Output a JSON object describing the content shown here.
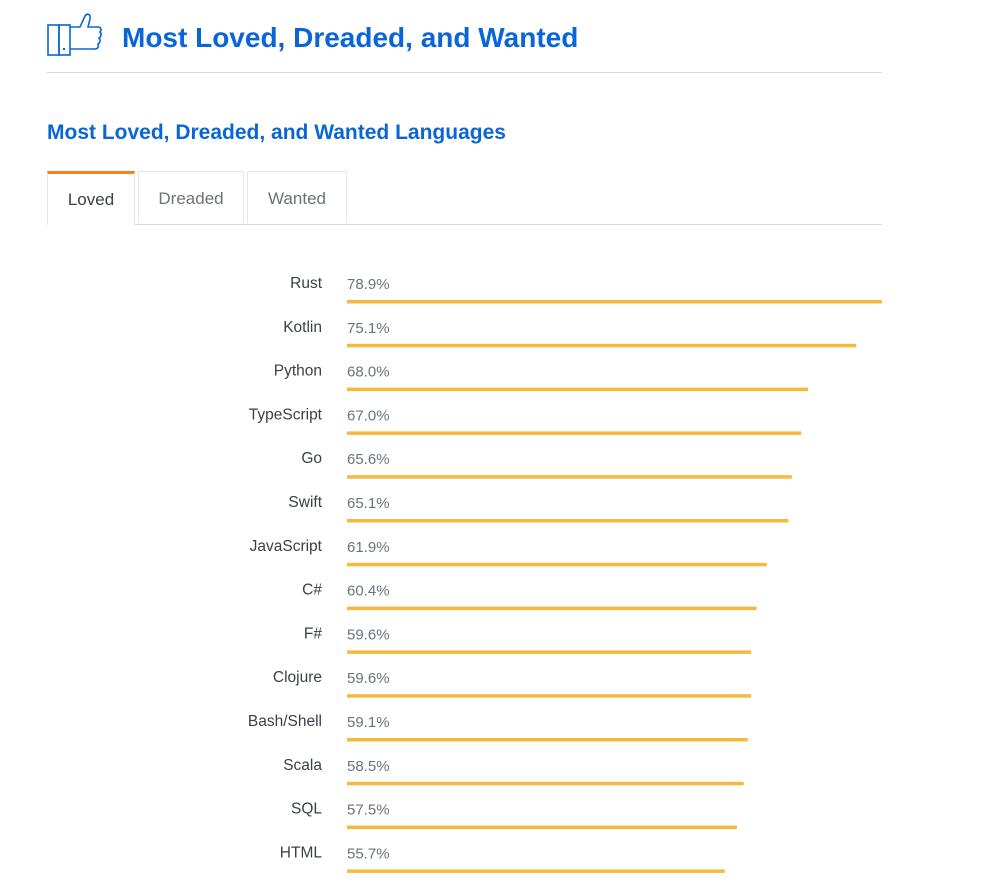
{
  "header": {
    "title": "Most Loved, Dreaded, and Wanted",
    "icon": "thumbs-up-icon"
  },
  "section": {
    "title": "Most Loved, Dreaded, and Wanted Languages"
  },
  "tabs": [
    {
      "label": "Loved",
      "active": true
    },
    {
      "label": "Dreaded",
      "active": false
    },
    {
      "label": "Wanted",
      "active": false
    }
  ],
  "colors": {
    "accent": "#0a66d6",
    "bar": "#f6b93b",
    "tab_active": "#f48024"
  },
  "chart_data": {
    "type": "bar",
    "orientation": "horizontal",
    "categories": [
      "Rust",
      "Kotlin",
      "Python",
      "TypeScript",
      "Go",
      "Swift",
      "JavaScript",
      "C#",
      "F#",
      "Clojure",
      "Bash/Shell",
      "Scala",
      "SQL",
      "HTML"
    ],
    "values": [
      78.9,
      75.1,
      68.0,
      67.0,
      65.6,
      65.1,
      61.9,
      60.4,
      59.6,
      59.6,
      59.1,
      58.5,
      57.5,
      55.7
    ],
    "value_labels": [
      "78.9%",
      "75.1%",
      "68.0%",
      "67.0%",
      "65.6%",
      "65.1%",
      "61.9%",
      "60.4%",
      "59.6%",
      "59.6%",
      "59.1%",
      "58.5%",
      "57.5%",
      "55.7%"
    ],
    "unit": "%",
    "xlim": [
      0,
      78.9
    ],
    "grid": false
  }
}
